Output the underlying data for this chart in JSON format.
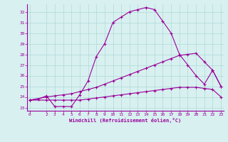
{
  "xlabel": "Windchill (Refroidissement éolien,°C)",
  "bg_color": "#d8f0f0",
  "line_color": "#990099",
  "grid_color": "#b0d8d8",
  "x_ticks": [
    0,
    2,
    3,
    4,
    5,
    6,
    7,
    8,
    9,
    10,
    11,
    12,
    13,
    14,
    15,
    16,
    17,
    18,
    19,
    20,
    21,
    22,
    23
  ],
  "y_ticks": [
    23,
    24,
    25,
    26,
    27,
    28,
    29,
    30,
    31,
    32
  ],
  "xlim": [
    -0.3,
    23.3
  ],
  "ylim": [
    22.7,
    32.7
  ],
  "line1_x": [
    0,
    1,
    2,
    3,
    4,
    5,
    6,
    7,
    8,
    9,
    10,
    11,
    12,
    13,
    14,
    15,
    16,
    17,
    18,
    19,
    20,
    21,
    22,
    23
  ],
  "line1_y": [
    23.7,
    23.8,
    24.1,
    23.1,
    23.1,
    23.1,
    24.2,
    25.5,
    27.8,
    29.0,
    31.0,
    31.5,
    32.0,
    32.2,
    32.4,
    32.2,
    31.1,
    30.0,
    28.0,
    27.0,
    26.0,
    25.2,
    26.5,
    25.0
  ],
  "line2_x": [
    0,
    2,
    3,
    4,
    5,
    6,
    7,
    8,
    9,
    10,
    11,
    12,
    13,
    14,
    15,
    16,
    17,
    18,
    19,
    20,
    21,
    22,
    23
  ],
  "line2_y": [
    23.7,
    24.0,
    24.1,
    24.2,
    24.3,
    24.5,
    24.7,
    24.9,
    25.2,
    25.5,
    25.8,
    26.1,
    26.4,
    26.7,
    27.0,
    27.3,
    27.6,
    27.9,
    28.0,
    28.1,
    27.3,
    26.5,
    25.0
  ],
  "line3_x": [
    0,
    2,
    3,
    4,
    5,
    6,
    7,
    8,
    9,
    10,
    11,
    12,
    13,
    14,
    15,
    16,
    17,
    18,
    19,
    20,
    21,
    22,
    23
  ],
  "line3_y": [
    23.7,
    23.7,
    23.7,
    23.7,
    23.7,
    23.7,
    23.8,
    23.9,
    24.0,
    24.1,
    24.2,
    24.3,
    24.4,
    24.5,
    24.6,
    24.7,
    24.8,
    24.9,
    24.9,
    24.9,
    24.8,
    24.7,
    24.0
  ]
}
